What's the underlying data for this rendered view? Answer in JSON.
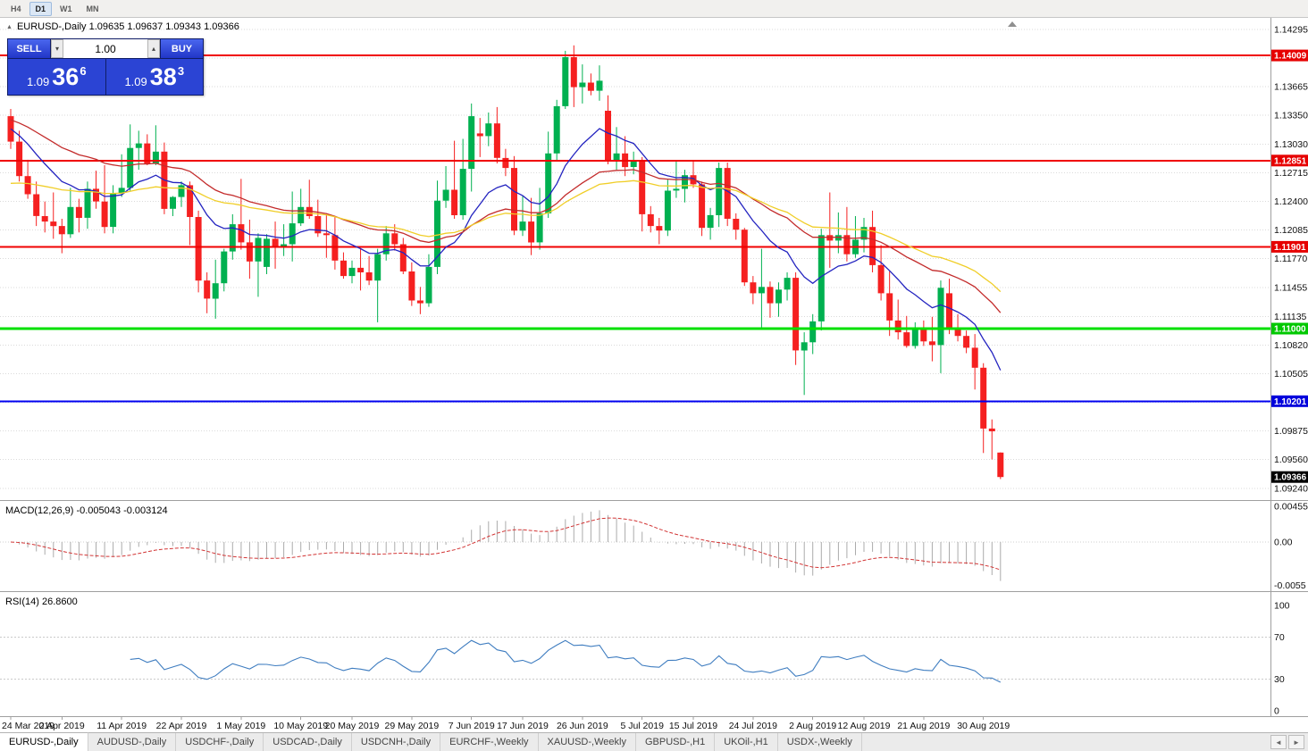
{
  "window": {
    "timeframe_toolbar": {
      "buttons": [
        "H4",
        "D1",
        "W1",
        "MN"
      ],
      "active": "D1"
    }
  },
  "chart": {
    "collapse_icon": "▲",
    "title": "EURUSD-,Daily 1.09635 1.09637 1.09343 1.09366"
  },
  "one_click": {
    "sell_label": "SELL",
    "buy_label": "BUY",
    "volume": "1.00",
    "volume_down_icon": "▾",
    "volume_up_icon": "▴",
    "sell_price_head": "1.09",
    "sell_price_big": "36",
    "sell_price_sup": "6",
    "buy_price_head": "1.09",
    "buy_price_big": "38",
    "buy_price_sup": "3"
  },
  "chart_data": {
    "type": "candlestick",
    "symbol": "EURUSD-",
    "period": "Daily",
    "colors": {
      "bull": "#00b050",
      "bear": "#f52020"
    },
    "ohlc": [
      [
        1.1334,
        1.1342,
        1.1298,
        1.1306
      ],
      [
        1.1306,
        1.1318,
        1.1262,
        1.1268
      ],
      [
        1.1268,
        1.1286,
        1.1243,
        1.1248
      ],
      [
        1.1248,
        1.1262,
        1.1213,
        1.1224
      ],
      [
        1.1224,
        1.124,
        1.1206,
        1.1218
      ],
      [
        1.1218,
        1.125,
        1.1199,
        1.1213
      ],
      [
        1.1213,
        1.1221,
        1.1183,
        1.1204
      ],
      [
        1.1204,
        1.1255,
        1.12,
        1.1234
      ],
      [
        1.1234,
        1.1243,
        1.1206,
        1.1222
      ],
      [
        1.1222,
        1.1262,
        1.121,
        1.1254
      ],
      [
        1.1254,
        1.1274,
        1.1232,
        1.124
      ],
      [
        1.124,
        1.128,
        1.1205,
        1.1212
      ],
      [
        1.1212,
        1.1258,
        1.1205,
        1.1249
      ],
      [
        1.1249,
        1.1292,
        1.1245,
        1.1255
      ],
      [
        1.1255,
        1.1325,
        1.1252,
        1.1299
      ],
      [
        1.1299,
        1.1318,
        1.1275,
        1.1304
      ],
      [
        1.1304,
        1.1314,
        1.128,
        1.1282
      ],
      [
        1.1282,
        1.1324,
        1.128,
        1.1295
      ],
      [
        1.1295,
        1.1305,
        1.1226,
        1.1232
      ],
      [
        1.1232,
        1.1246,
        1.1224,
        1.1245
      ],
      [
        1.1245,
        1.1262,
        1.1234,
        1.1258
      ],
      [
        1.1258,
        1.1262,
        1.1192,
        1.1223
      ],
      [
        1.1223,
        1.123,
        1.114,
        1.1153
      ],
      [
        1.1153,
        1.1162,
        1.1117,
        1.1133
      ],
      [
        1.1133,
        1.1176,
        1.1111,
        1.115
      ],
      [
        1.115,
        1.1188,
        1.1141,
        1.1185
      ],
      [
        1.1185,
        1.1226,
        1.1176,
        1.1215
      ],
      [
        1.1215,
        1.1265,
        1.1187,
        1.1195
      ],
      [
        1.1195,
        1.122,
        1.1155,
        1.1174
      ],
      [
        1.1174,
        1.1205,
        1.1135,
        1.12
      ],
      [
        1.1168,
        1.1204,
        1.116,
        1.1199
      ],
      [
        1.1199,
        1.1218,
        1.1166,
        1.119
      ],
      [
        1.119,
        1.1215,
        1.118,
        1.1193
      ],
      [
        1.1193,
        1.1251,
        1.1174,
        1.1216
      ],
      [
        1.1216,
        1.1254,
        1.1213,
        1.1234
      ],
      [
        1.1234,
        1.1264,
        1.1221,
        1.1224
      ],
      [
        1.1224,
        1.1242,
        1.1201,
        1.1205
      ],
      [
        1.1205,
        1.1226,
        1.1178,
        1.1203
      ],
      [
        1.1203,
        1.1224,
        1.1165,
        1.1175
      ],
      [
        1.1175,
        1.1184,
        1.1155,
        1.1158
      ],
      [
        1.1158,
        1.1175,
        1.115,
        1.1167
      ],
      [
        1.1167,
        1.1188,
        1.1142,
        1.1162
      ],
      [
        1.1162,
        1.118,
        1.1148,
        1.1153
      ],
      [
        1.1153,
        1.1188,
        1.1107,
        1.1182
      ],
      [
        1.1182,
        1.1213,
        1.1175,
        1.1205
      ],
      [
        1.1205,
        1.1215,
        1.1186,
        1.1193
      ],
      [
        1.1193,
        1.12,
        1.116,
        1.1163
      ],
      [
        1.1163,
        1.1173,
        1.1125,
        1.1131
      ],
      [
        1.1131,
        1.1146,
        1.1116,
        1.1128
      ],
      [
        1.1128,
        1.1182,
        1.1124,
        1.1168
      ],
      [
        1.1168,
        1.1263,
        1.116,
        1.1241
      ],
      [
        1.1241,
        1.1279,
        1.1233,
        1.1253
      ],
      [
        1.1253,
        1.1307,
        1.1221,
        1.1225
      ],
      [
        1.1225,
        1.1309,
        1.122,
        1.1276
      ],
      [
        1.1276,
        1.1348,
        1.1251,
        1.1334
      ],
      [
        1.1315,
        1.1332,
        1.1289,
        1.1312
      ],
      [
        1.1312,
        1.1338,
        1.1301,
        1.1326
      ],
      [
        1.1326,
        1.1344,
        1.1282,
        1.1288
      ],
      [
        1.1288,
        1.1298,
        1.1268,
        1.1277
      ],
      [
        1.1277,
        1.129,
        1.1203,
        1.1208
      ],
      [
        1.1208,
        1.1246,
        1.1202,
        1.1218
      ],
      [
        1.1218,
        1.1244,
        1.1181,
        1.1195
      ],
      [
        1.1195,
        1.1255,
        1.1187,
        1.1227
      ],
      [
        1.1227,
        1.1317,
        1.1222,
        1.1293
      ],
      [
        1.1293,
        1.1352,
        1.1285,
        1.1345
      ],
      [
        1.1345,
        1.1406,
        1.1342,
        1.1399
      ],
      [
        1.1399,
        1.1412,
        1.1344,
        1.1366
      ],
      [
        1.1366,
        1.1391,
        1.1348,
        1.1371
      ],
      [
        1.1371,
        1.1381,
        1.1357,
        1.1362
      ],
      [
        1.1362,
        1.139,
        1.1351,
        1.1373
      ],
      [
        1.134,
        1.1357,
        1.1281,
        1.1285
      ],
      [
        1.1285,
        1.1322,
        1.1275,
        1.1293
      ],
      [
        1.1293,
        1.1312,
        1.1268,
        1.1278
      ],
      [
        1.1278,
        1.1295,
        1.127,
        1.1285
      ],
      [
        1.1285,
        1.1289,
        1.1207,
        1.1226
      ],
      [
        1.1226,
        1.1235,
        1.1206,
        1.1213
      ],
      [
        1.1213,
        1.1222,
        1.1193,
        1.1208
      ],
      [
        1.1208,
        1.1264,
        1.1202,
        1.1252
      ],
      [
        1.1252,
        1.1285,
        1.1244,
        1.1254
      ],
      [
        1.1254,
        1.1275,
        1.1239,
        1.1269
      ],
      [
        1.1269,
        1.1284,
        1.1255,
        1.1259
      ],
      [
        1.1259,
        1.1262,
        1.1202,
        1.1211
      ],
      [
        1.1211,
        1.1233,
        1.1198,
        1.1225
      ],
      [
        1.1225,
        1.1283,
        1.1212,
        1.1277
      ],
      [
        1.1277,
        1.1283,
        1.1213,
        1.1221
      ],
      [
        1.1221,
        1.1227,
        1.1198,
        1.1209
      ],
      [
        1.1209,
        1.1211,
        1.1147,
        1.1151
      ],
      [
        1.1151,
        1.1158,
        1.1127,
        1.1139
      ],
      [
        1.1139,
        1.1188,
        1.1101,
        1.1146
      ],
      [
        1.1146,
        1.1152,
        1.1112,
        1.1128
      ],
      [
        1.1128,
        1.1151,
        1.1113,
        1.1143
      ],
      [
        1.1143,
        1.1162,
        1.1131,
        1.1156
      ],
      [
        1.1156,
        1.1162,
        1.106,
        1.1076
      ],
      [
        1.1076,
        1.1096,
        1.1027,
        1.1085
      ],
      [
        1.1085,
        1.1116,
        1.1072,
        1.1108
      ],
      [
        1.1108,
        1.121,
        1.1098,
        1.1203
      ],
      [
        1.1203,
        1.125,
        1.1167,
        1.1197
      ],
      [
        1.1197,
        1.1228,
        1.1183,
        1.1203
      ],
      [
        1.1203,
        1.1234,
        1.1174,
        1.1182
      ],
      [
        1.1182,
        1.1224,
        1.1178,
        1.1198
      ],
      [
        1.1198,
        1.1222,
        1.1184,
        1.1212
      ],
      [
        1.1212,
        1.123,
        1.1162,
        1.117
      ],
      [
        1.117,
        1.1192,
        1.1131,
        1.1139
      ],
      [
        1.1139,
        1.1163,
        1.1092,
        1.1109
      ],
      [
        1.1109,
        1.1132,
        1.1088,
        1.1096
      ],
      [
        1.1096,
        1.1114,
        1.1079,
        1.1081
      ],
      [
        1.1081,
        1.1107,
        1.1078,
        1.1099
      ],
      [
        1.1099,
        1.1109,
        1.1081,
        1.1086
      ],
      [
        1.1086,
        1.1113,
        1.1064,
        1.1082
      ],
      [
        1.1082,
        1.1153,
        1.1051,
        1.1145
      ],
      [
        1.1139,
        1.1155,
        1.1094,
        1.1101
      ],
      [
        1.1101,
        1.1116,
        1.1086,
        1.1092
      ],
      [
        1.1092,
        1.1098,
        1.1073,
        1.1079
      ],
      [
        1.1079,
        1.1094,
        1.1033,
        1.1057
      ],
      [
        1.1057,
        1.1062,
        1.0963,
        1.099
      ],
      [
        1.099,
        1.1,
        1.0956,
        1.0987
      ],
      [
        1.09635,
        1.09637,
        1.09343,
        1.09366
      ]
    ],
    "x_labels": [
      {
        "i": 0,
        "text": "24 Mar 2019"
      },
      {
        "i": 6,
        "text": "2 Apr 2019"
      },
      {
        "i": 13,
        "text": "11 Apr 2019"
      },
      {
        "i": 20,
        "text": "22 Apr 2019"
      },
      {
        "i": 27,
        "text": "1 May 2019"
      },
      {
        "i": 34,
        "text": "10 May 2019"
      },
      {
        "i": 40,
        "text": "20 May 2019"
      },
      {
        "i": 47,
        "text": "29 May 2019"
      },
      {
        "i": 54,
        "text": "7 Jun 2019"
      },
      {
        "i": 60,
        "text": "17 Jun 2019"
      },
      {
        "i": 67,
        "text": "26 Jun 2019"
      },
      {
        "i": 74,
        "text": "5 Jul 2019"
      },
      {
        "i": 80,
        "text": "15 Jul 2019"
      },
      {
        "i": 87,
        "text": "24 Jul 2019"
      },
      {
        "i": 94,
        "text": "2 Aug 2019"
      },
      {
        "i": 100,
        "text": "12 Aug 2019"
      },
      {
        "i": 107,
        "text": "21 Aug 2019"
      },
      {
        "i": 114,
        "text": "30 Aug 2019"
      }
    ],
    "price_axis": {
      "gridlines": [
        1.14295,
        1.1398,
        1.13665,
        1.1335,
        1.1303,
        1.12715,
        1.124,
        1.12085,
        1.1177,
        1.11455,
        1.11135,
        1.1082,
        1.10505,
        1.1019,
        1.09875,
        1.0956,
        1.0924
      ],
      "labels": [
        {
          "value": 1.14295,
          "text": "1.14295"
        },
        {
          "value": 1.13665,
          "text": "1.13665"
        },
        {
          "value": 1.1335,
          "text": "1.13350"
        },
        {
          "value": 1.1303,
          "text": "1.13030"
        },
        {
          "value": 1.12715,
          "text": "1.12715"
        },
        {
          "value": 1.124,
          "text": "1.12400"
        },
        {
          "value": 1.12085,
          "text": "1.12085"
        },
        {
          "value": 1.1177,
          "text": "1.11770"
        },
        {
          "value": 1.11455,
          "text": "1.11455"
        },
        {
          "value": 1.11135,
          "text": "1.11135"
        },
        {
          "value": 1.1082,
          "text": "1.10820"
        },
        {
          "value": 1.10505,
          "text": "1.10505"
        },
        {
          "value": 1.09875,
          "text": "1.09875"
        },
        {
          "value": 1.0956,
          "text": "1.09560"
        },
        {
          "value": 1.0924,
          "text": "1.09240"
        }
      ],
      "tags": [
        {
          "price": 1.14009,
          "text": "1.14009",
          "color": "#e60000"
        },
        {
          "price": 1.12851,
          "text": "1.12851",
          "color": "#e60000"
        },
        {
          "price": 1.11901,
          "text": "1.11901",
          "color": "#e60000"
        },
        {
          "price": 1.11,
          "text": "1.11000",
          "color": "#00c800"
        },
        {
          "price": 1.10201,
          "text": "1.10201",
          "color": "#0000dc"
        },
        {
          "price": 1.09366,
          "text": "1.09366",
          "color": "#000000"
        }
      ]
    },
    "hlines": [
      {
        "price": 1.14009,
        "color": "#f00000",
        "width": 2
      },
      {
        "price": 1.12851,
        "color": "#f00000",
        "width": 2
      },
      {
        "price": 1.11901,
        "color": "#f00000",
        "width": 2
      },
      {
        "price": 1.11,
        "color": "#00e000",
        "width": 3
      },
      {
        "price": 1.10201,
        "color": "#0000f0",
        "width": 2
      }
    ],
    "moving_averages": [
      {
        "period": 13,
        "seed": 1.132,
        "color": "#2424c0"
      },
      {
        "period": 34,
        "seed": 1.133,
        "color": "#c32b2b"
      },
      {
        "period": 48,
        "seed": 1.126,
        "color": "#f0ce28"
      }
    ],
    "indicators": [
      {
        "name": "MACD",
        "label": "MACD(12,26,9) -0.005043 -0.003124",
        "main_value": "-0.005043",
        "signal_value": "-0.003124",
        "histogram_color": "#ababab",
        "signal_color": "#d23535",
        "axis": [
          {
            "value": 0.00455,
            "text": "0.00455"
          },
          {
            "value": 0,
            "text": "0.00"
          },
          {
            "value": -0.0055,
            "text": "-0.0055"
          }
        ]
      },
      {
        "name": "RSI",
        "label": "RSI(14) 26.8600",
        "value": "26.8600",
        "line_color": "#3f7dc0",
        "levels": [
          70,
          30
        ],
        "axis": [
          {
            "value": 100,
            "text": "100"
          },
          {
            "value": 70,
            "text": "70"
          },
          {
            "value": 30,
            "text": "30"
          },
          {
            "value": 0,
            "text": "0"
          }
        ]
      }
    ]
  },
  "tabs": {
    "items": [
      "EURUSD-,Daily",
      "AUDUSD-,Daily",
      "USDCHF-,Daily",
      "USDCAD-,Daily",
      "USDCNH-,Daily",
      "EURCHF-,Weekly",
      "XAUUSD-,Weekly",
      "GBPUSD-,H1",
      "UKOil-,H1",
      "USDX-,Weekly"
    ],
    "active_index": 0,
    "scroll_left_icon": "◄",
    "scroll_right_icon": "►"
  }
}
